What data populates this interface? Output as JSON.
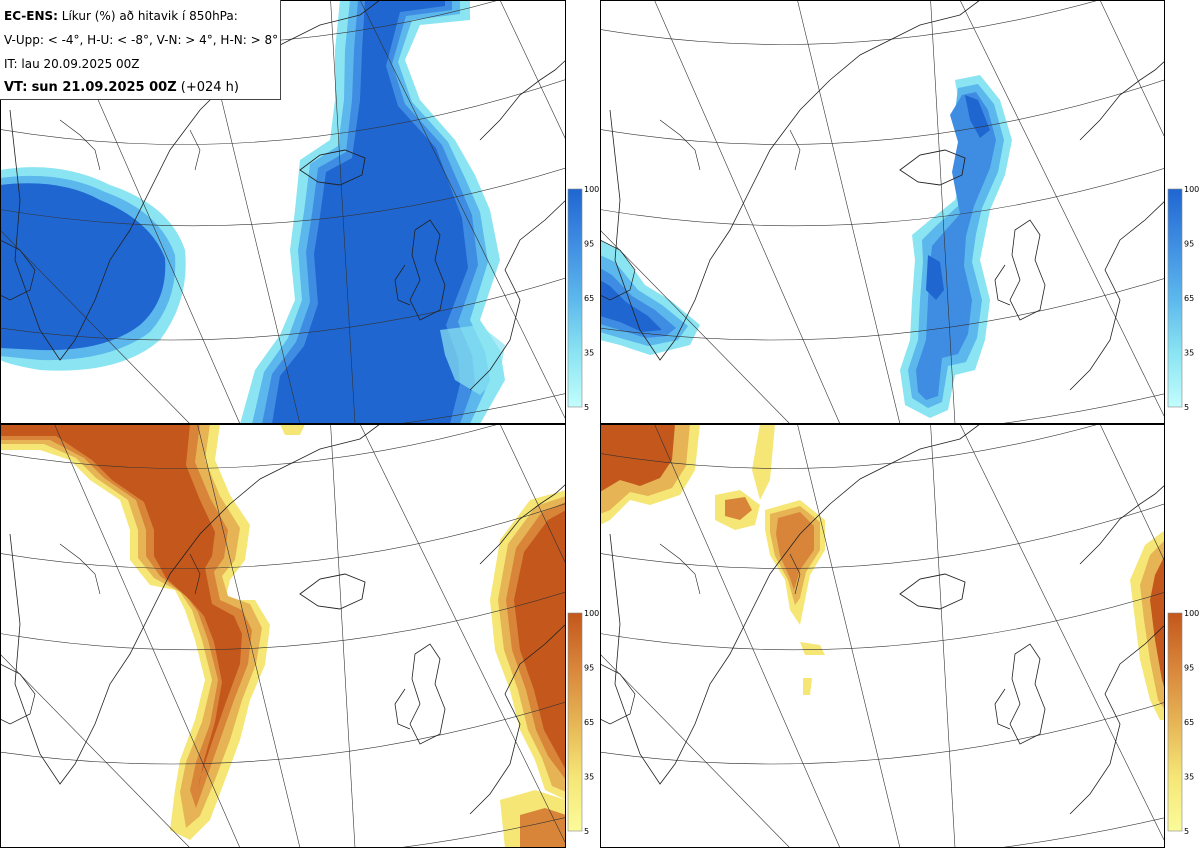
{
  "title_box": {
    "model_label": "EC-ENS:",
    "description": "Líkur (%) að hitavik í 850hPa:",
    "thresholds": "V-Upp: < -4°, H-U: < -8°, V-N: > 4°, H-N: > 8°",
    "initial_time": "IT: lau 20.09.2025 00Z",
    "valid_label": "VT:",
    "valid_time": "sun 21.09.2025 00Z",
    "lead_time": "(+024 h)"
  },
  "panels": [
    {
      "position": "top-left",
      "palette": "cold",
      "threshold": "V-Upp: < -4°"
    },
    {
      "position": "top-right",
      "palette": "cold",
      "threshold": "H-U: < -8°"
    },
    {
      "position": "bottom-left",
      "palette": "warm",
      "threshold": "V-N: > 4°"
    },
    {
      "position": "bottom-right",
      "palette": "warm",
      "threshold": "H-N: > 8°"
    }
  ],
  "colorbar": {
    "ticks": [
      "100",
      "95",
      "65",
      "35",
      "5"
    ],
    "cold_colors": [
      "#1f66d1",
      "#3f8de2",
      "#5bb7ec",
      "#8ae4f2",
      "#c2fdfd"
    ],
    "warm_colors": [
      "#c4571c",
      "#d8853a",
      "#e6b455",
      "#f5e676",
      "#fbfb9a"
    ]
  }
}
